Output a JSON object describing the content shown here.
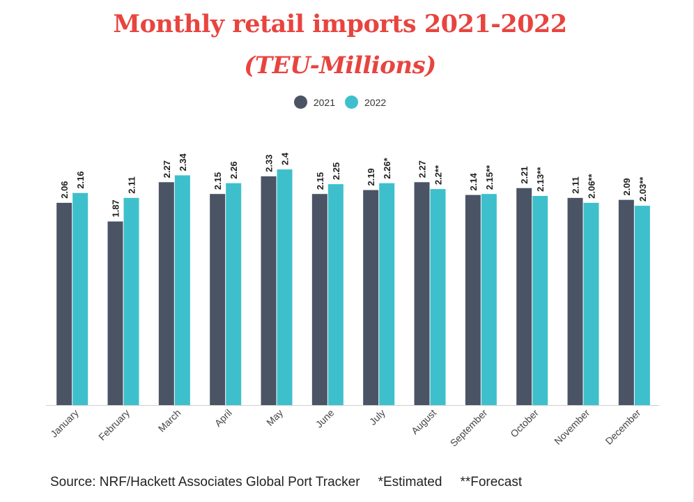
{
  "chart_data": {
    "type": "bar",
    "title": "Monthly retail imports 2021-2022",
    "subtitle": "(TEU-Millions)",
    "categories": [
      "January",
      "February",
      "March",
      "April",
      "May",
      "June",
      "July",
      "August",
      "September",
      "October",
      "November",
      "December"
    ],
    "series": [
      {
        "name": "2021",
        "color": "#4a5464",
        "values": [
          2.06,
          1.87,
          2.27,
          2.15,
          2.33,
          2.15,
          2.19,
          2.27,
          2.14,
          2.21,
          2.11,
          2.09
        ],
        "labels": [
          "2.06",
          "1.87",
          "2.27",
          "2.15",
          "2.33",
          "2.15",
          "2.19",
          "2.27",
          "2.14",
          "2.21",
          "2.11",
          "2.09"
        ]
      },
      {
        "name": "2022",
        "color": "#3ec0cc",
        "values": [
          2.16,
          2.11,
          2.34,
          2.26,
          2.4,
          2.25,
          2.26,
          2.2,
          2.15,
          2.13,
          2.06,
          2.03
        ],
        "labels": [
          "2.16",
          "2.11",
          "2.34",
          "2.26",
          "2.4",
          "2.25",
          "2.26*",
          "2.2**",
          "2.15**",
          "2.13**",
          "2.06**",
          "2.03**"
        ]
      }
    ],
    "ylim": [
      0,
      2.4
    ],
    "grid": false,
    "legend_position": "top-center"
  },
  "footer": {
    "source": "Source: NRF/Hackett Associates Global Port Tracker",
    "estimated": "*Estimated",
    "forecast": "**Forecast"
  }
}
